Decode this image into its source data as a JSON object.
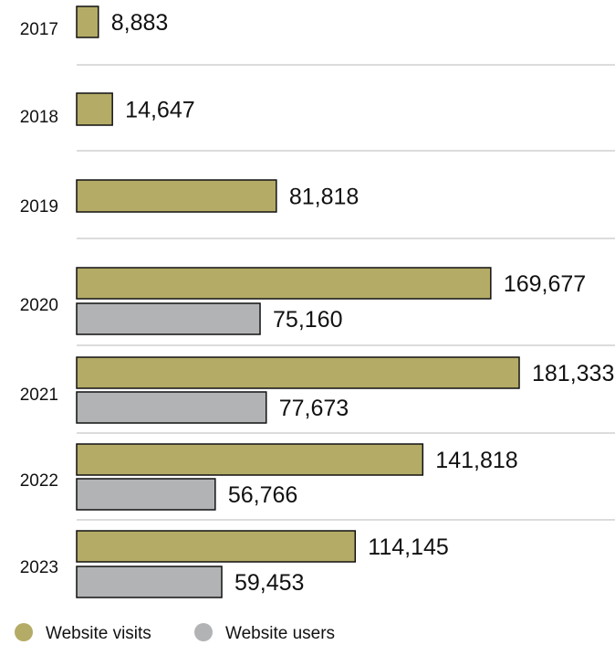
{
  "chart_data": {
    "type": "bar",
    "orientation": "horizontal",
    "categories": [
      "2017",
      "2018",
      "2019",
      "2020",
      "2021",
      "2022",
      "2023"
    ],
    "series": [
      {
        "name": "Website visits",
        "color": "#b4ab67",
        "values": [
          8883,
          14647,
          81818,
          169677,
          181333,
          141818,
          114145
        ],
        "labels": [
          "8,883",
          "14,647",
          "81,818",
          "169,677",
          "181,333",
          "141,818",
          "114,145"
        ]
      },
      {
        "name": "Website users",
        "color": "#b1b3b5",
        "values": [
          null,
          null,
          null,
          75160,
          77673,
          56766,
          59453
        ],
        "labels": [
          "",
          "",
          "",
          "75,160",
          "77,673",
          "56,766",
          "59,453"
        ]
      }
    ],
    "xlim": [
      0,
      181333
    ],
    "grid": false,
    "separators": true,
    "legend_position": "bottom-left"
  }
}
